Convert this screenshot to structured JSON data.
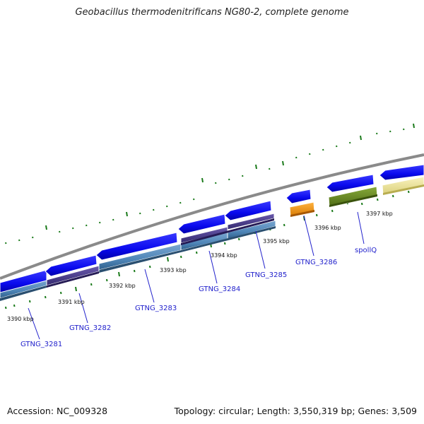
{
  "title": "Geobacillus thermodenitrificans NG80-2, complete genome",
  "accession": "Accession: NC_009328",
  "summary": "Topology: circular; Length: 3,550,319 bp; Genes: 3,509",
  "kbp_labels": [
    "3390 kbp",
    "3391 kbp",
    "3392 kbp",
    "3393 kbp",
    "3394 kbp",
    "3395 kbp",
    "3396 kbp",
    "3397 kbp"
  ],
  "genes": [
    "GTNG_3281",
    "GTNG_3282",
    "GTNG_3283",
    "GTNG_3284",
    "GTNG_3285",
    "GTNG_3286",
    "spollQ"
  ],
  "colors": {
    "cds": "#0a0aee",
    "backbone": "#8a8a8a",
    "tick": "#1a7a1a",
    "track_blue": "#4f86b8",
    "track_purple": "#4a3a8c",
    "track_orange": "#ff9900",
    "track_olive": "#6a8c22",
    "track_cream": "#f2eaa0",
    "label": "#2222cc"
  }
}
